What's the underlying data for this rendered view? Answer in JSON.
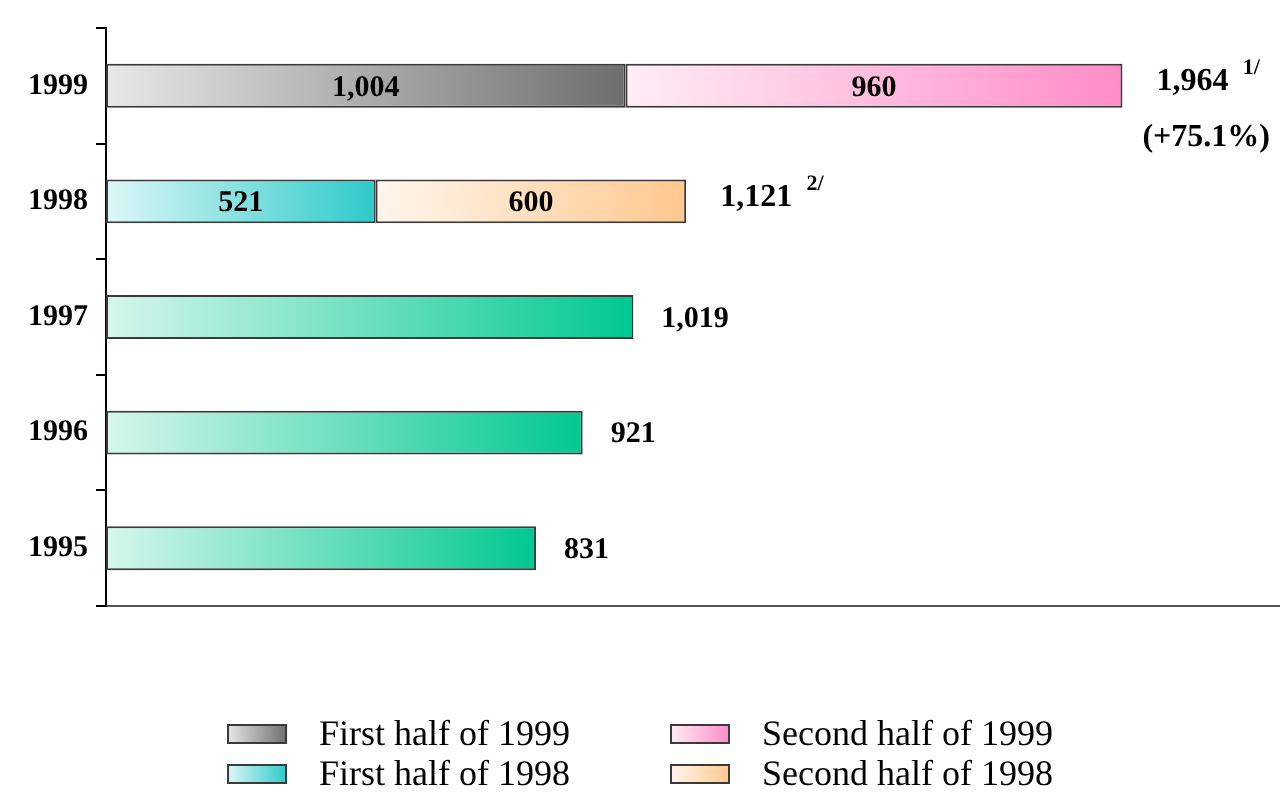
{
  "chart_data": {
    "type": "bar",
    "orientation": "horizontal",
    "stacked": true,
    "categories": [
      "1999",
      "1998",
      "1997",
      "1996",
      "1995"
    ],
    "series": [
      {
        "name": "First half of 1999",
        "color": "#6e6e6e",
        "values": [
          1004,
          null,
          null,
          null,
          null
        ],
        "value_labels": [
          "1,004",
          null,
          null,
          null,
          null
        ]
      },
      {
        "name": "Second half of 1999",
        "color": "#ff8cc8",
        "values": [
          960,
          null,
          null,
          null,
          null
        ],
        "value_labels": [
          "960",
          null,
          null,
          null,
          null
        ]
      },
      {
        "name": "First half of 1998",
        "color": "#2ecaca",
        "values": [
          null,
          521,
          null,
          null,
          null
        ],
        "value_labels": [
          null,
          "521",
          null,
          null,
          null
        ]
      },
      {
        "name": "Second half of 1998",
        "color": "#ffc88e",
        "values": [
          null,
          600,
          null,
          null,
          null
        ],
        "value_labels": [
          null,
          "600",
          null,
          null,
          null
        ]
      },
      {
        "color": "#00c891",
        "values": [
          null,
          null,
          1019,
          921,
          831
        ],
        "value_labels": [
          null,
          null,
          "1,019",
          "921",
          "831"
        ]
      }
    ],
    "totals": [
      "1,964$^{1/}$",
      "1,121$^{2/}$",
      null,
      null,
      null
    ],
    "annotations": [
      {
        "text": "(+75.1%)",
        "x": 1964,
        "y": "1999"
      }
    ],
    "legend": "bottom",
    "tick_labels": "y"
  }
}
